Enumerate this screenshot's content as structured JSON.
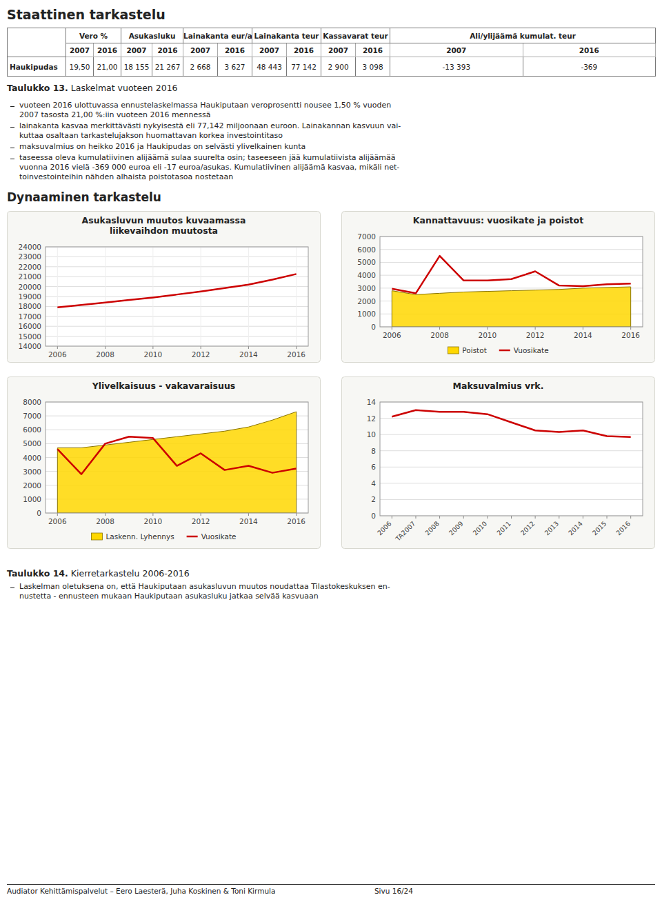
{
  "page": {
    "title": "Staattinen tarkastelu",
    "table": {
      "headers": [
        "Vero %",
        "Asukasluku",
        "Lainakanta eur/as",
        "Lainakanta teur",
        "Kassavarat teur",
        "Ali/ylijäämä kumulat. teur"
      ],
      "subheaders": [
        "2007",
        "2016"
      ],
      "row_label": "Haukipudas",
      "values": [
        "19,50",
        "21,00",
        "18 155",
        "21 267",
        "2 668",
        "3 627",
        "48 443",
        "77 142",
        "2 900",
        "3 098",
        "-13 393",
        "-369"
      ]
    },
    "table_caption": {
      "label": "Taulukko 13.",
      "text": " Laskelmat vuoteen 2016"
    },
    "bullets": [
      "vuoteen 2016 ulottuvassa ennustelaskelmassa Haukiputaan veroprosentti nousee 1,50 % vuoden\n2007 tasosta 21,00 %:iin vuoteen 2016 mennessä",
      "lainakanta kasvaa merkittävästi nykyisestä eli 77,142 miljoonaan euroon. Lainakannan kasvuun vai-\nkuttaa osaltaan tarkastelujakson huomattavan korkea investointitaso",
      "maksuvalmius on heikko 2016 ja Haukipudas on selvästi ylivelkainen kunta",
      "taseessa oleva kumulatiivinen alijäämä sulaa suurelta osin; taseeseen jää kumulatiivista alijäämää\nvuonna 2016 vielä -369 000 euroa eli -17 euroa/asukas. Kumulatiivinen alijäämä kasvaa, mikäli net-\ntoinvestointeihin nähden alhaista poistotasoa nostetaan"
    ],
    "section_title": "Dynaaminen tarkastelu",
    "table2_caption": {
      "label": "Taulukko 14.",
      "text": " Kierretarkastelu 2006-2016"
    },
    "bullets2": [
      "Laskelman oletuksena on, että Haukiputaan asukasluvun muutos noudattaa Tilastokeskuksen en-\nnustetta - ennusteen mukaan Haukiputaan asukasluku jatkaa selvää kasvuaan"
    ],
    "footer": "Audiator Kehittämispalvelut – Eero Laesterä, Juha Koskinen & Toni Kirmula                                           Sivu 16/24"
  },
  "chart_data": [
    {
      "type": "line",
      "title": "Asukasluvun muutos kuvaamassa\nliikevaihdon muutosta",
      "x": [
        2006,
        2007,
        2008,
        2009,
        2010,
        2011,
        2012,
        2013,
        2014,
        2015,
        2016
      ],
      "values": [
        17900,
        18155,
        18400,
        18650,
        18900,
        19200,
        19500,
        19850,
        20200,
        20700,
        21267
      ],
      "color": "#cc0000",
      "xlim": [
        2005.5,
        2016.5
      ],
      "xticks": [
        2006,
        2008,
        2010,
        2012,
        2014,
        2016
      ],
      "ylim": [
        14000,
        24000
      ],
      "yticks": [
        14000,
        15000,
        16000,
        17000,
        18000,
        19000,
        20000,
        21000,
        22000,
        23000,
        24000
      ],
      "grid": true
    },
    {
      "type": "line",
      "title": "Kannattavuus: vuosikate ja poistot",
      "x": [
        2006,
        2007,
        2008,
        2009,
        2010,
        2011,
        2012,
        2013,
        2014,
        2015,
        2016
      ],
      "series": [
        {
          "name": "Poistot",
          "type": "area",
          "color": "#ffd700",
          "values": [
            2800,
            2500,
            2600,
            2700,
            2750,
            2800,
            2850,
            2900,
            3000,
            3050,
            3100
          ]
        },
        {
          "name": "Vuosikate",
          "type": "line",
          "color": "#cc0000",
          "values": [
            2950,
            2600,
            5500,
            3600,
            3600,
            3700,
            4300,
            3200,
            3150,
            3300,
            3350
          ]
        }
      ],
      "xlim": [
        2005.5,
        2016.5
      ],
      "xticks": [
        2006,
        2008,
        2010,
        2012,
        2014,
        2016
      ],
      "ylim": [
        0,
        7000
      ],
      "yticks": [
        0,
        1000,
        2000,
        3000,
        4000,
        5000,
        6000,
        7000
      ],
      "grid": "y",
      "legend": "bottom"
    },
    {
      "type": "line",
      "title": "Ylivelkaisuus - vakavaraisuus",
      "x": [
        2006,
        2007,
        2008,
        2009,
        2010,
        2011,
        2012,
        2013,
        2014,
        2015,
        2016
      ],
      "series": [
        {
          "name": "Laskenn. Lyhennys",
          "type": "area",
          "color": "#ffd700",
          "values": [
            4700,
            4700,
            4900,
            5100,
            5300,
            5500,
            5700,
            5900,
            6200,
            6700,
            7300
          ]
        },
        {
          "name": "Vuosikate",
          "type": "line",
          "color": "#cc0000",
          "values": [
            4600,
            2800,
            5000,
            5500,
            5400,
            3400,
            4300,
            3100,
            3400,
            2900,
            3200
          ]
        }
      ],
      "xlim": [
        2005.5,
        2016.5
      ],
      "xticks": [
        2006,
        2008,
        2010,
        2012,
        2014,
        2016
      ],
      "ylim": [
        0,
        8000
      ],
      "yticks": [
        0,
        1000,
        2000,
        3000,
        4000,
        5000,
        6000,
        7000,
        8000
      ],
      "grid": "y",
      "legend": "bottom"
    },
    {
      "type": "line",
      "title": "Maksuvalmius vrk.",
      "categories": [
        "2006",
        "TA2007",
        "2008",
        "2009",
        "2010",
        "2011",
        "2012",
        "2013",
        "2014",
        "2015",
        "2016"
      ],
      "values": [
        12.2,
        13.0,
        12.8,
        12.8,
        12.5,
        11.5,
        10.5,
        10.3,
        10.5,
        9.8,
        9.7
      ],
      "color": "#cc0000",
      "ylim": [
        0,
        14
      ],
      "yticks": [
        0,
        2,
        4,
        6,
        8,
        10,
        12,
        14
      ],
      "grid": "y"
    }
  ]
}
